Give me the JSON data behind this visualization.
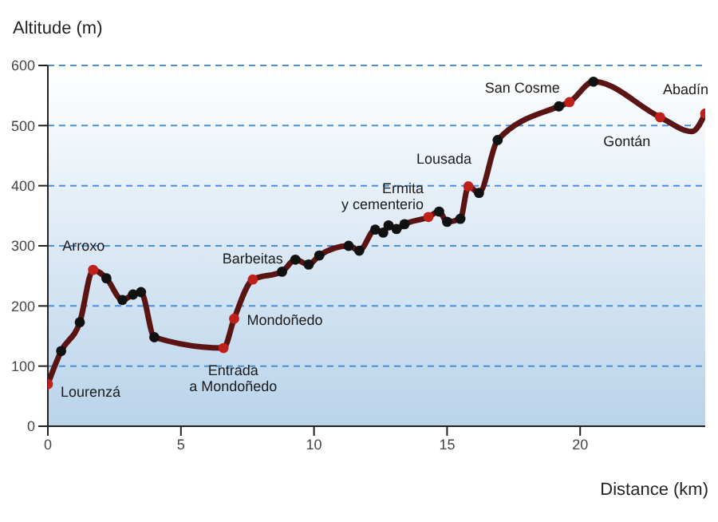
{
  "chart_data": {
    "type": "line",
    "xlabel": "Distance (km)",
    "ylabel": "Altitude (m)",
    "x": [
      0,
      0.5,
      1.2,
      1.7,
      2.2,
      2.8,
      3.2,
      3.5,
      4.0,
      6.6,
      7.0,
      7.7,
      8.8,
      9.3,
      9.8,
      10.2,
      11.3,
      11.7,
      12.3,
      12.6,
      12.8,
      13.1,
      13.4,
      14.3,
      14.7,
      15.0,
      15.5,
      15.8,
      16.2,
      16.9,
      19.2,
      19.6,
      20.5,
      23.0,
      24.2,
      24.7
    ],
    "series": [
      {
        "color": "#5a1414",
        "values": [
          70,
          125,
          173,
          260,
          246,
          210,
          219,
          223,
          148,
          130,
          179,
          244,
          257,
          277,
          269,
          284,
          300,
          292,
          327,
          322,
          334,
          328,
          336,
          348,
          357,
          340,
          345,
          399,
          388,
          476,
          532,
          539,
          573,
          514,
          490,
          520
        ],
        "colors": [
          "#c0201a",
          "#111111",
          "#111111",
          "#c0201a",
          "#111111",
          "#111111",
          "#111111",
          "#111111",
          "#111111",
          "#c0201a",
          "#c0201a",
          "#c0201a",
          "#111111",
          "#111111",
          "#111111",
          "#111111",
          "#111111",
          "#111111",
          "#111111",
          "#111111",
          "#111111",
          "#111111",
          "#111111",
          "#c0201a",
          "#111111",
          "#111111",
          "#111111",
          "#c0201a",
          "#111111",
          "#111111",
          "#111111",
          "#c0201a",
          "#111111",
          "#c0201a",
          null,
          "#c0201a"
        ]
      }
    ],
    "marker": "circle",
    "line_style": "solid",
    "xlim": [
      0,
      24.7
    ],
    "xticks": [
      0,
      5,
      10,
      15,
      20
    ],
    "ylim": [
      0,
      600
    ],
    "yticks": [
      0,
      100,
      200,
      300,
      400,
      500,
      600
    ],
    "grid": "y",
    "annotations": [
      {
        "text": "Lourenzá",
        "x": 0,
        "y": 70
      },
      {
        "text": "Arroxo",
        "x": 1.7,
        "y": 260
      },
      {
        "text": "Entrada\na Mondoñedo",
        "x": 6.6,
        "y": 130
      },
      {
        "text": "Mondoñedo",
        "x": 7.0,
        "y": 179
      },
      {
        "text": "Barbeitas",
        "x": 7.7,
        "y": 244
      },
      {
        "text": "Ermita\ny cementerio",
        "x": 14.3,
        "y": 348
      },
      {
        "text": "Lousada",
        "x": 15.8,
        "y": 399
      },
      {
        "text": "San Cosme",
        "x": 19.6,
        "y": 539
      },
      {
        "text": "Gontán",
        "x": 23.0,
        "y": 514
      },
      {
        "text": "Abadín",
        "x": 24.7,
        "y": 520
      }
    ]
  }
}
